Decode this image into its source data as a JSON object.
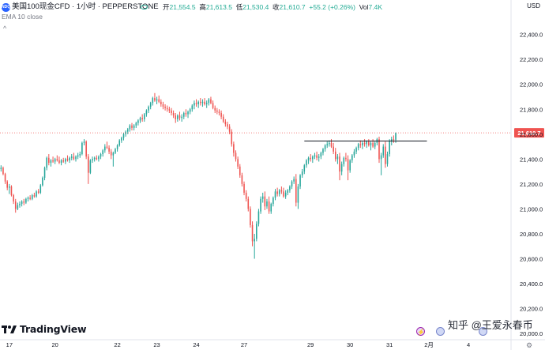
{
  "header": {
    "symbol_badge": "NDQ",
    "title": "美国100现金CFD · 1小时 · PEPPERSTONE",
    "ohlc": [
      {
        "label": "开",
        "value": "21,554.5"
      },
      {
        "label": "高",
        "value": "21,613.5"
      },
      {
        "label": "低",
        "value": "21,530.4"
      },
      {
        "label": "收",
        "value": "21,610.7"
      },
      {
        "label": "",
        "value": "+55.2 (+0.26%)"
      },
      {
        "label": "Vol",
        "value": "7.4K"
      }
    ],
    "indicator": "EMA 10 close",
    "currency": "USD",
    "collapse_glyph": "^"
  },
  "branding": {
    "name": "TradingView",
    "watermark": "知乎 @王爱永春币"
  },
  "colors": {
    "up": "#26a69a",
    "down": "#ef5350",
    "last_price_bg": "#ef5350"
  },
  "chart_data": {
    "type": "candlestick",
    "last_price": 21610.7,
    "last_price_label": "21,610.7",
    "ylim": [
      19950,
      22550
    ],
    "y_ticks": [
      20000,
      20200,
      20400,
      20600,
      20800,
      21000,
      21200,
      21400,
      21600,
      21800,
      22000,
      22200,
      22400
    ],
    "y_tick_labels": [
      "20,000.0",
      "20,200.0",
      "20,400.0",
      "20,600.0",
      "20,800.0",
      "21,000.0",
      "21,200.0",
      "21,400.0",
      "21,600.0",
      "21,800.0",
      "22,000.0",
      "22,200.0",
      "22,400.0"
    ],
    "x_ticks": [
      {
        "label": "17",
        "bar": 4
      },
      {
        "label": "20",
        "bar": 26
      },
      {
        "label": "22",
        "bar": 56
      },
      {
        "label": "23",
        "bar": 75
      },
      {
        "label": "24",
        "bar": 94
      },
      {
        "label": "27",
        "bar": 117
      },
      {
        "label": "29",
        "bar": 149
      },
      {
        "label": "30",
        "bar": 168
      },
      {
        "label": "31",
        "bar": 187
      },
      {
        "label": "2月",
        "bar": 206
      },
      {
        "label": "4",
        "bar": 225
      }
    ],
    "total_bars": 246,
    "horizontal_line": {
      "value": 21545,
      "from_bar": 146,
      "to_bar": 205
    },
    "candles": [
      [
        0,
        21320,
        21350,
        21300,
        21330
      ],
      [
        1,
        21330,
        21340,
        21270,
        21280
      ],
      [
        2,
        21280,
        21290,
        21200,
        21220
      ],
      [
        3,
        21220,
        21230,
        21150,
        21170
      ],
      [
        4,
        21170,
        21200,
        21120,
        21180
      ],
      [
        5,
        21180,
        21190,
        21100,
        21110
      ],
      [
        6,
        21110,
        21120,
        21040,
        21060
      ],
      [
        7,
        21060,
        21080,
        20970,
        21000
      ],
      [
        8,
        21000,
        21050,
        20990,
        21030
      ],
      [
        9,
        21030,
        21060,
        21010,
        21040
      ],
      [
        10,
        21040,
        21070,
        21020,
        21060
      ],
      [
        11,
        21060,
        21080,
        21030,
        21050
      ],
      [
        12,
        21050,
        21090,
        21040,
        21080
      ],
      [
        13,
        21080,
        21100,
        21060,
        21090
      ],
      [
        14,
        21090,
        21110,
        21070,
        21080
      ],
      [
        15,
        21080,
        21120,
        21070,
        21110
      ],
      [
        16,
        21110,
        21130,
        21090,
        21100
      ],
      [
        17,
        21100,
        21150,
        21090,
        21140
      ],
      [
        18,
        21140,
        21160,
        21120,
        21130
      ],
      [
        19,
        21130,
        21200,
        21120,
        21190
      ],
      [
        20,
        21190,
        21260,
        21180,
        21250
      ],
      [
        21,
        21250,
        21340,
        21230,
        21330
      ],
      [
        22,
        21330,
        21420,
        21310,
        21410
      ],
      [
        23,
        21410,
        21440,
        21350,
        21370
      ],
      [
        24,
        21370,
        21400,
        21340,
        21390
      ],
      [
        25,
        21390,
        21420,
        21370,
        21380
      ],
      [
        26,
        21380,
        21410,
        21360,
        21400
      ],
      [
        27,
        21400,
        21430,
        21380,
        21390
      ],
      [
        28,
        21390,
        21420,
        21360,
        21370
      ],
      [
        29,
        21370,
        21400,
        21350,
        21390
      ],
      [
        30,
        21390,
        21410,
        21370,
        21380
      ],
      [
        31,
        21380,
        21410,
        21360,
        21400
      ],
      [
        32,
        21400,
        21430,
        21380,
        21390
      ],
      [
        33,
        21390,
        21420,
        21370,
        21410
      ],
      [
        34,
        21410,
        21440,
        21390,
        21420
      ],
      [
        35,
        21420,
        21450,
        21390,
        21400
      ],
      [
        36,
        21400,
        21430,
        21380,
        21420
      ],
      [
        37,
        21420,
        21450,
        21400,
        21430
      ],
      [
        38,
        21430,
        21460,
        21410,
        21440
      ],
      [
        39,
        21440,
        21540,
        21430,
        21530
      ],
      [
        40,
        21530,
        21560,
        21510,
        21540
      ],
      [
        41,
        21540,
        21550,
        21400,
        21420
      ],
      [
        42,
        21420,
        21440,
        21200,
        21290
      ],
      [
        43,
        21290,
        21400,
        21280,
        21390
      ],
      [
        44,
        21390,
        21420,
        21370,
        21400
      ],
      [
        45,
        21400,
        21420,
        21380,
        21410
      ],
      [
        46,
        21410,
        21430,
        21390,
        21400
      ],
      [
        47,
        21400,
        21430,
        21380,
        21420
      ],
      [
        48,
        21420,
        21450,
        21400,
        21440
      ],
      [
        49,
        21440,
        21480,
        21420,
        21470
      ],
      [
        50,
        21470,
        21520,
        21450,
        21500
      ],
      [
        51,
        21500,
        21540,
        21480,
        21490
      ],
      [
        52,
        21490,
        21510,
        21440,
        21460
      ],
      [
        53,
        21460,
        21480,
        21400,
        21430
      ],
      [
        54,
        21430,
        21460,
        21340,
        21450
      ],
      [
        55,
        21450,
        21490,
        21440,
        21480
      ],
      [
        56,
        21480,
        21520,
        21460,
        21510
      ],
      [
        57,
        21510,
        21560,
        21500,
        21550
      ],
      [
        58,
        21550,
        21580,
        21530,
        21570
      ],
      [
        59,
        21570,
        21610,
        21550,
        21600
      ],
      [
        60,
        21600,
        21630,
        21580,
        21620
      ],
      [
        61,
        21620,
        21650,
        21600,
        21640
      ],
      [
        62,
        21640,
        21680,
        21620,
        21670
      ],
      [
        63,
        21670,
        21690,
        21630,
        21650
      ],
      [
        64,
        21650,
        21680,
        21630,
        21670
      ],
      [
        65,
        21670,
        21700,
        21650,
        21690
      ],
      [
        66,
        21690,
        21720,
        21670,
        21710
      ],
      [
        67,
        21710,
        21740,
        21690,
        21730
      ],
      [
        68,
        21730,
        21760,
        21700,
        21720
      ],
      [
        69,
        21720,
        21770,
        21700,
        21760
      ],
      [
        70,
        21760,
        21800,
        21740,
        21790
      ],
      [
        71,
        21790,
        21830,
        21770,
        21820
      ],
      [
        72,
        21820,
        21860,
        21800,
        21850
      ],
      [
        73,
        21850,
        21900,
        21830,
        21890
      ],
      [
        74,
        21890,
        21930,
        21860,
        21870
      ],
      [
        75,
        21870,
        21900,
        21840,
        21880
      ],
      [
        76,
        21880,
        21910,
        21850,
        21860
      ],
      [
        77,
        21860,
        21880,
        21820,
        21840
      ],
      [
        78,
        21840,
        21860,
        21800,
        21820
      ],
      [
        79,
        21820,
        21840,
        21790,
        21810
      ],
      [
        80,
        21810,
        21830,
        21780,
        21800
      ],
      [
        81,
        21800,
        21820,
        21770,
        21790
      ],
      [
        82,
        21790,
        21810,
        21750,
        21770
      ],
      [
        83,
        21770,
        21790,
        21730,
        21750
      ],
      [
        84,
        21750,
        21770,
        21690,
        21720
      ],
      [
        85,
        21720,
        21760,
        21700,
        21750
      ],
      [
        86,
        21750,
        21780,
        21710,
        21730
      ],
      [
        87,
        21730,
        21760,
        21700,
        21740
      ],
      [
        88,
        21740,
        21780,
        21720,
        21770
      ],
      [
        89,
        21770,
        21800,
        21740,
        21760
      ],
      [
        90,
        21760,
        21790,
        21730,
        21780
      ],
      [
        91,
        21780,
        21810,
        21760,
        21800
      ],
      [
        92,
        21800,
        21840,
        21780,
        21830
      ],
      [
        93,
        21830,
        21870,
        21800,
        21850
      ],
      [
        94,
        21850,
        21880,
        21820,
        21840
      ],
      [
        95,
        21840,
        21870,
        21810,
        21860
      ],
      [
        96,
        21860,
        21890,
        21830,
        21850
      ],
      [
        97,
        21850,
        21880,
        21820,
        21860
      ],
      [
        98,
        21860,
        21890,
        21830,
        21840
      ],
      [
        99,
        21840,
        21870,
        21810,
        21850
      ],
      [
        100,
        21850,
        21890,
        21830,
        21880
      ],
      [
        101,
        21880,
        21900,
        21840,
        21850
      ],
      [
        102,
        21850,
        21870,
        21800,
        21810
      ],
      [
        103,
        21810,
        21830,
        21770,
        21790
      ],
      [
        104,
        21790,
        21810,
        21760,
        21780
      ],
      [
        105,
        21780,
        21800,
        21750,
        21770
      ],
      [
        106,
        21770,
        21790,
        21720,
        21740
      ],
      [
        107,
        21740,
        21760,
        21690,
        21700
      ],
      [
        108,
        21700,
        21720,
        21660,
        21680
      ],
      [
        109,
        21680,
        21700,
        21640,
        21660
      ],
      [
        110,
        21660,
        21680,
        21600,
        21620
      ],
      [
        111,
        21620,
        21640,
        21500,
        21520
      ],
      [
        112,
        21520,
        21540,
        21420,
        21450
      ],
      [
        113,
        21450,
        21470,
        21380,
        21400
      ],
      [
        114,
        21400,
        21420,
        21320,
        21340
      ],
      [
        115,
        21340,
        21360,
        21250,
        21270
      ],
      [
        116,
        21270,
        21290,
        21180,
        21200
      ],
      [
        117,
        21200,
        21220,
        21110,
        21130
      ],
      [
        118,
        21130,
        21150,
        21060,
        21080
      ],
      [
        119,
        21080,
        21100,
        20980,
        21000
      ],
      [
        120,
        21000,
        21020,
        20850,
        20870
      ],
      [
        121,
        20870,
        20900,
        20700,
        20740
      ],
      [
        122,
        20740,
        20800,
        20600,
        20760
      ],
      [
        123,
        20760,
        20900,
        20740,
        20880
      ],
      [
        124,
        20880,
        21000,
        20860,
        20980
      ],
      [
        125,
        20980,
        21100,
        20960,
        21080
      ],
      [
        126,
        21080,
        21130,
        21050,
        21100
      ],
      [
        127,
        21100,
        21140,
        20990,
        21020
      ],
      [
        128,
        21020,
        21080,
        21000,
        21060
      ],
      [
        129,
        21060,
        21100,
        20960,
        20980
      ],
      [
        130,
        20980,
        21050,
        20960,
        21040
      ],
      [
        131,
        21040,
        21100,
        21020,
        21090
      ],
      [
        132,
        21090,
        21160,
        21070,
        21140
      ],
      [
        133,
        21140,
        21170,
        21100,
        21120
      ],
      [
        134,
        21120,
        21160,
        21100,
        21150
      ],
      [
        135,
        21150,
        21180,
        21120,
        21140
      ],
      [
        136,
        21140,
        21170,
        21090,
        21100
      ],
      [
        137,
        21100,
        21150,
        21080,
        21130
      ],
      [
        138,
        21130,
        21160,
        21110,
        21150
      ],
      [
        139,
        21150,
        21190,
        21130,
        21180
      ],
      [
        140,
        21180,
        21230,
        21160,
        21220
      ],
      [
        141,
        21220,
        21260,
        21200,
        21240
      ],
      [
        142,
        21240,
        21280,
        21020,
        21050
      ],
      [
        143,
        21050,
        21200,
        21000,
        21180
      ],
      [
        144,
        21180,
        21280,
        21160,
        21270
      ],
      [
        145,
        21270,
        21320,
        21250,
        21300
      ],
      [
        146,
        21300,
        21360,
        21280,
        21350
      ],
      [
        147,
        21350,
        21400,
        21330,
        21390
      ],
      [
        148,
        21390,
        21420,
        21360,
        21410
      ],
      [
        149,
        21410,
        21440,
        21380,
        21400
      ],
      [
        150,
        21400,
        21430,
        21370,
        21420
      ],
      [
        151,
        21420,
        21450,
        21400,
        21430
      ],
      [
        152,
        21430,
        21460,
        21390,
        21410
      ],
      [
        153,
        21410,
        21440,
        21380,
        21420
      ],
      [
        154,
        21420,
        21460,
        21400,
        21450
      ],
      [
        155,
        21450,
        21490,
        21430,
        21480
      ],
      [
        156,
        21480,
        21520,
        21460,
        21510
      ],
      [
        157,
        21510,
        21540,
        21490,
        21520
      ],
      [
        158,
        21520,
        21550,
        21500,
        21530
      ],
      [
        159,
        21530,
        21560,
        21490,
        21500
      ],
      [
        160,
        21500,
        21530,
        21440,
        21460
      ],
      [
        161,
        21460,
        21490,
        21380,
        21400
      ],
      [
        162,
        21400,
        21440,
        21360,
        21420
      ],
      [
        163,
        21420,
        21450,
        21230,
        21300
      ],
      [
        164,
        21300,
        21380,
        21270,
        21360
      ],
      [
        165,
        21360,
        21420,
        21340,
        21410
      ],
      [
        166,
        21410,
        21450,
        21380,
        21400
      ],
      [
        167,
        21400,
        21430,
        21230,
        21310
      ],
      [
        168,
        21310,
        21400,
        21290,
        21390
      ],
      [
        169,
        21390,
        21440,
        21370,
        21430
      ],
      [
        170,
        21430,
        21480,
        21410,
        21460
      ],
      [
        171,
        21460,
        21500,
        21440,
        21490
      ],
      [
        172,
        21490,
        21530,
        21470,
        21520
      ],
      [
        173,
        21520,
        21550,
        21490,
        21510
      ],
      [
        174,
        21510,
        21540,
        21480,
        21530
      ],
      [
        175,
        21530,
        21560,
        21500,
        21520
      ],
      [
        176,
        21520,
        21550,
        21490,
        21540
      ],
      [
        177,
        21540,
        21560,
        21500,
        21510
      ],
      [
        178,
        21510,
        21540,
        21470,
        21530
      ],
      [
        179,
        21530,
        21560,
        21490,
        21500
      ],
      [
        180,
        21500,
        21540,
        21480,
        21530
      ],
      [
        181,
        21530,
        21570,
        21510,
        21560
      ],
      [
        182,
        21560,
        21580,
        21370,
        21400
      ],
      [
        183,
        21400,
        21450,
        21270,
        21430
      ],
      [
        184,
        21430,
        21520,
        21410,
        21500
      ],
      [
        185,
        21500,
        21540,
        21330,
        21360
      ],
      [
        186,
        21360,
        21460,
        21340,
        21440
      ],
      [
        187,
        21440,
        21560,
        21420,
        21540
      ],
      [
        188,
        21540,
        21580,
        21510,
        21560
      ],
      [
        189,
        21560,
        21590,
        21530,
        21555
      ],
      [
        190,
        21555,
        21614,
        21530,
        21611
      ]
    ]
  }
}
